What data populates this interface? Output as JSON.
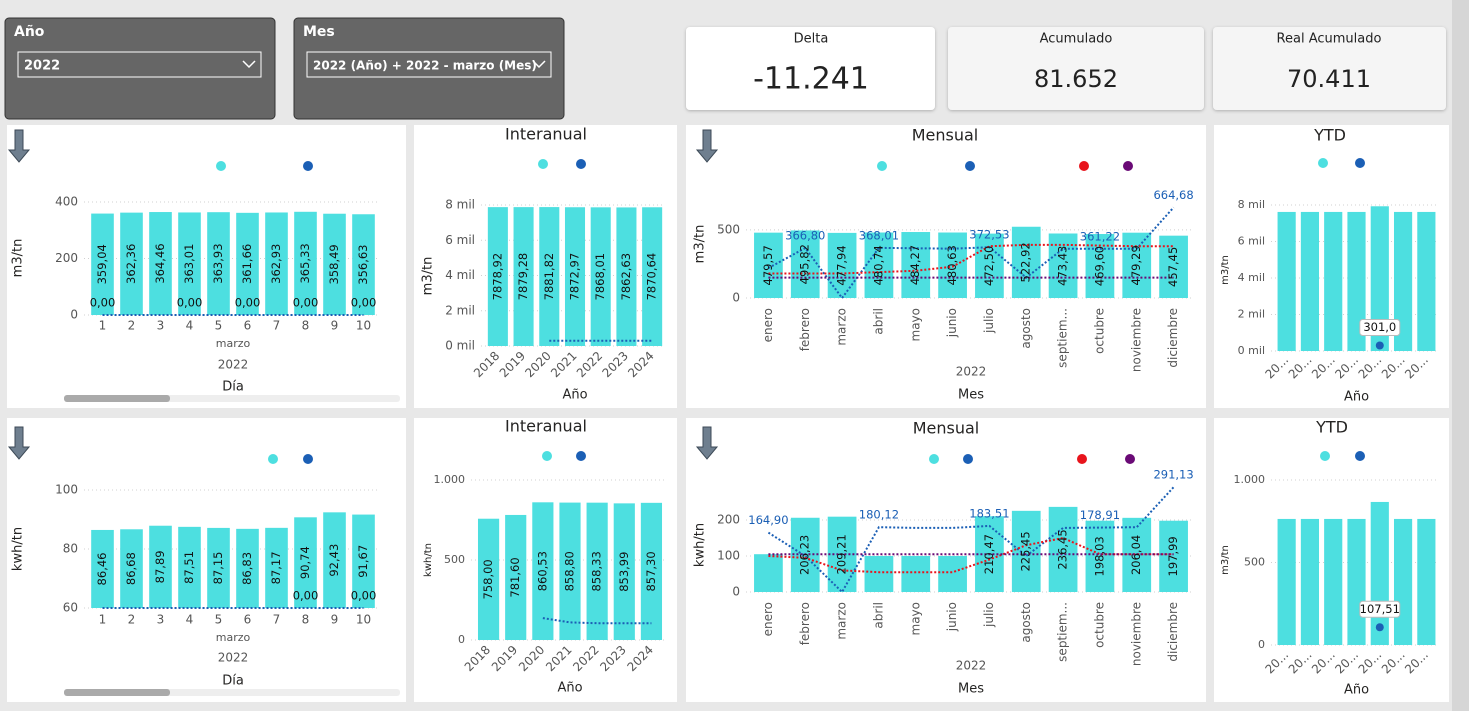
{
  "filters": [
    {
      "label": "Año",
      "value": "2022"
    },
    {
      "label": "Mes",
      "value": "2022 (Año) + 2022 - marzo (Mes)"
    }
  ],
  "cards": [
    {
      "title": "Delta",
      "value": "-11.241"
    },
    {
      "title": "Acumulado",
      "value": "81.652"
    },
    {
      "title": "Real Acumulado",
      "value": "70.411"
    }
  ],
  "chart_data": [
    {
      "type": "bar",
      "y_label": "m3/tn",
      "x_label": "Día",
      "x_sublabel": "marzo",
      "x_group": "2022",
      "categories": [
        "1",
        "2",
        "3",
        "4",
        "5",
        "6",
        "7",
        "8",
        "9",
        "10"
      ],
      "ylim": [
        0,
        400
      ],
      "yticks": [
        0,
        200,
        400
      ],
      "grid": true,
      "series": [
        {
          "type": "bar",
          "color": "#4ddfe0",
          "values": [
            359.04,
            362.36,
            364.46,
            363.01,
            363.93,
            361.66,
            362.93,
            365.33,
            358.49,
            356.63
          ],
          "value_labels": [
            "359,04",
            "362,36",
            "364,46",
            "363,01",
            "363,93",
            "361,66",
            "362,93",
            "365,33",
            "358,49",
            "356,63"
          ]
        },
        {
          "type": "line",
          "color": "#1b5fb5",
          "values": [
            0,
            0,
            0,
            0,
            0,
            0,
            0,
            0,
            0,
            0
          ],
          "value_labels": [
            "0,00",
            null,
            null,
            "0,00",
            null,
            "0,00",
            null,
            "0,00",
            null,
            "0,00"
          ]
        }
      ]
    },
    {
      "type": "bar",
      "title": "Interanual",
      "y_label": "m3/tn",
      "x_label": "Año",
      "categories": [
        "2018",
        "2019",
        "2020",
        "2021",
        "2022",
        "2023",
        "2024"
      ],
      "ylim": [
        0,
        8000
      ],
      "yticks": [
        {
          "value": 0,
          "label": "0 mil"
        },
        {
          "value": 2000,
          "label": "2 mil"
        },
        {
          "value": 4000,
          "label": "4 mil"
        },
        {
          "value": 6000,
          "label": "6 mil"
        },
        {
          "value": 8000,
          "label": "8 mil"
        }
      ],
      "grid": true,
      "series": [
        {
          "type": "bar",
          "color": "#4ddfe0",
          "values": [
            7878.92,
            7879.28,
            7881.82,
            7872.97,
            7868.01,
            7862.63,
            7870.64
          ],
          "value_labels": [
            "7878,92",
            "7879,28",
            "7881,82",
            "7872,97",
            "7868,01",
            "7862,63",
            "7870,64"
          ]
        },
        {
          "type": "line",
          "color": "#1b5fb5",
          "values": [
            null,
            null,
            300,
            300,
            300,
            300,
            300
          ]
        }
      ]
    },
    {
      "type": "bar",
      "title": "Mensual",
      "y_label": "m3/tn",
      "x_label": "Mes",
      "x_group": "2022",
      "categories": [
        "enero",
        "febrero",
        "marzo",
        "abril",
        "mayo",
        "junio",
        "julio",
        "agosto",
        "septiem...",
        "octubre",
        "noviembre",
        "diciembre"
      ],
      "ylim": [
        0,
        800
      ],
      "yticks": [
        0,
        500
      ],
      "grid": true,
      "series": [
        {
          "type": "bar",
          "color": "#4ddfe0",
          "values": [
            479.57,
            495.82,
            477.94,
            480.74,
            484.27,
            480.63,
            472.5,
            522.92,
            473.43,
            469.6,
            479.29,
            457.45
          ],
          "value_labels": [
            "479,57",
            "495,82",
            "477,94",
            "480,74",
            "484,27",
            "480,63",
            "472,50",
            "522,92",
            "473,43",
            "469,60",
            "479,29",
            "457,45"
          ]
        },
        {
          "type": "line",
          "color": "#1b5fb5",
          "values": [
            220,
            366.8,
            0,
            368.01,
            365,
            362,
            372.53,
            150,
            361,
            361.22,
            362,
            664.68
          ],
          "value_labels": [
            null,
            "366,80",
            null,
            "368,01",
            null,
            null,
            "372,53",
            null,
            null,
            "361,22",
            null,
            "664,68"
          ]
        },
        {
          "type": "line",
          "color": "#e8141c",
          "values": [
            180,
            180,
            180,
            190,
            200,
            230,
            380,
            390,
            390,
            385,
            380,
            380
          ]
        },
        {
          "type": "line",
          "color": "#6a0a76",
          "values": [
            150,
            150,
            150,
            150,
            150,
            150,
            150,
            150,
            150,
            150,
            150,
            150
          ]
        }
      ]
    },
    {
      "type": "bar",
      "title": "YTD",
      "y_label": "m3/tn",
      "x_label": "Año",
      "categories": [
        "20...",
        "20...",
        "20...",
        "20...",
        "20...",
        "20...",
        "20..."
      ],
      "ylim": [
        0,
        8000
      ],
      "yticks": [
        {
          "value": 0,
          "label": "0 mil"
        },
        {
          "value": 2000,
          "label": "2 mil"
        },
        {
          "value": 4000,
          "label": "4 mil"
        },
        {
          "value": 6000,
          "label": "6 mil"
        },
        {
          "value": 8000,
          "label": "8 mil"
        }
      ],
      "grid": true,
      "series": [
        {
          "type": "bar",
          "color": "#4ddfe0",
          "values": [
            7620,
            7620,
            7620,
            7620,
            7930,
            7620,
            7620
          ]
        },
        {
          "type": "scatter",
          "color": "#1b5fb5",
          "values": [
            null,
            null,
            null,
            null,
            301.0,
            null,
            null
          ],
          "value_labels": [
            null,
            null,
            null,
            null,
            "301,0",
            null,
            null
          ]
        }
      ]
    },
    {
      "type": "bar",
      "y_label": "kwh/tn",
      "x_label": "Día",
      "x_sublabel": "marzo",
      "x_group": "2022",
      "categories": [
        "1",
        "2",
        "3",
        "4",
        "5",
        "6",
        "7",
        "8",
        "9",
        "10"
      ],
      "ylim": [
        60,
        100
      ],
      "yticks": [
        60,
        80,
        100
      ],
      "grid": true,
      "series": [
        {
          "type": "bar",
          "color": "#4ddfe0",
          "values": [
            86.46,
            86.68,
            87.89,
            87.51,
            87.15,
            86.83,
            87.17,
            90.74,
            92.43,
            91.67
          ],
          "value_labels": [
            "86,46",
            "86,68",
            "87,89",
            "87,51",
            "87,15",
            "86,83",
            "87,17",
            "90,74",
            "92,43",
            "91,67"
          ]
        },
        {
          "type": "line",
          "color": "#1b5fb5",
          "values": [
            0,
            0,
            0,
            0,
            0,
            0,
            0,
            0,
            0,
            0
          ],
          "value_labels": [
            null,
            null,
            null,
            null,
            null,
            null,
            null,
            "0,00",
            null,
            "0,00"
          ]
        }
      ]
    },
    {
      "type": "bar",
      "title": "Interanual",
      "y_label": "kwh/tn",
      "x_label": "Año",
      "categories": [
        "2018",
        "2019",
        "2020",
        "2021",
        "2022",
        "2023",
        "2024"
      ],
      "ylim": [
        0,
        1000
      ],
      "yticks": [
        0,
        500,
        {
          "value": 1000,
          "label": "1.000"
        }
      ],
      "grid": true,
      "series": [
        {
          "type": "bar",
          "color": "#4ddfe0",
          "values": [
            758.0,
            781.6,
            860.53,
            858.8,
            858.33,
            853.99,
            857.3
          ],
          "value_labels": [
            "758,00",
            "781,60",
            "860,53",
            "858,80",
            "858,33",
            "853,99",
            "857,30"
          ]
        },
        {
          "type": "line",
          "color": "#1b5fb5",
          "values": [
            null,
            null,
            137,
            110,
            105,
            105,
            105
          ]
        }
      ]
    },
    {
      "type": "bar",
      "title": "Mensual",
      "y_label": "kwh/tn",
      "x_label": "Mes",
      "x_group": "2022",
      "categories": [
        "enero",
        "febrero",
        "marzo",
        "abril",
        "mayo",
        "junio",
        "julio",
        "agosto",
        "septiem...",
        "octubre",
        "noviembre",
        "diciembre"
      ],
      "ylim": [
        0,
        300
      ],
      "yticks": [
        0,
        100,
        200
      ],
      "grid": true,
      "series": [
        {
          "type": "bar",
          "color": "#4ddfe0",
          "values": [
            105,
            206.23,
            209.21,
            100,
            100,
            100,
            210.47,
            225.45,
            236.45,
            198.03,
            206.04,
            197.99
          ],
          "value_labels": [
            null,
            "206,23",
            "209,21",
            null,
            null,
            null,
            "210,47",
            "225,45",
            "236,45",
            "198,03",
            "206,04",
            "197,99"
          ]
        },
        {
          "type": "line",
          "color": "#1b5fb5",
          "values": [
            164.9,
            100,
            0,
            180.12,
            178,
            178,
            183.51,
            100,
            178,
            178.91,
            180,
            291.13
          ],
          "value_labels": [
            "164,90",
            null,
            null,
            "180,12",
            null,
            null,
            "183,51",
            null,
            null,
            "178,91",
            null,
            "291,13"
          ]
        },
        {
          "type": "line",
          "color": "#e8141c",
          "values": [
            100,
            95,
            60,
            55,
            55,
            55,
            90,
            130,
            150,
            105,
            105,
            105
          ]
        },
        {
          "type": "line",
          "color": "#6a0a76",
          "values": [
            105,
            105,
            105,
            105,
            105,
            105,
            105,
            105,
            105,
            105,
            105,
            105
          ]
        }
      ]
    },
    {
      "type": "bar",
      "title": "YTD",
      "y_label": "m3/tn",
      "x_label": "Año",
      "categories": [
        "20...",
        "20...",
        "20...",
        "20...",
        "20...",
        "20...",
        "20..."
      ],
      "ylim": [
        0,
        1000
      ],
      "yticks": [
        0,
        500,
        {
          "value": 1000,
          "label": "1.000"
        }
      ],
      "grid": true,
      "series": [
        {
          "type": "bar",
          "color": "#4ddfe0",
          "values": [
            764,
            764,
            764,
            764,
            867,
            764,
            764
          ]
        },
        {
          "type": "scatter",
          "color": "#1b5fb5",
          "values": [
            null,
            null,
            null,
            null,
            107.51,
            null,
            null
          ],
          "value_labels": [
            null,
            null,
            null,
            null,
            "107,51",
            null,
            null
          ]
        }
      ]
    }
  ]
}
